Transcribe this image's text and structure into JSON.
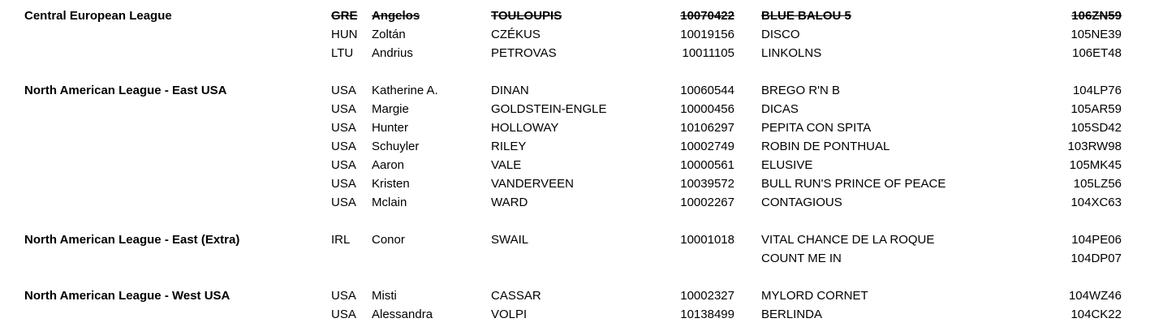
{
  "colors": {
    "text": "#000000",
    "background": "#ffffff"
  },
  "document": {
    "groups": [
      {
        "league": "Central European League",
        "rows": [
          {
            "country": "GRE",
            "first_name": "Angelos",
            "last_name": "TOULOUPIS",
            "fei_id": "10070422",
            "horse": "BLUE BALOU 5",
            "horse_id": "106ZN59",
            "struck": true
          },
          {
            "country": "HUN",
            "first_name": "Zoltán",
            "last_name": "CZÉKUS",
            "fei_id": "10019156",
            "horse": "DISCO",
            "horse_id": "105NE39",
            "struck": false
          },
          {
            "country": "LTU",
            "first_name": "Andrius",
            "last_name": "PETROVAS",
            "fei_id": "10011105",
            "horse": "LINKOLNS",
            "horse_id": "106ET48",
            "struck": false
          }
        ]
      },
      {
        "league": "North American League - East USA",
        "rows": [
          {
            "country": "USA",
            "first_name": "Katherine A.",
            "last_name": "DINAN",
            "fei_id": "10060544",
            "horse": "BREGO R'N B",
            "horse_id": "104LP76",
            "struck": false
          },
          {
            "country": "USA",
            "first_name": "Margie",
            "last_name": "GOLDSTEIN-ENGLE",
            "fei_id": "10000456",
            "horse": "DICAS",
            "horse_id": "105AR59",
            "struck": false
          },
          {
            "country": "USA",
            "first_name": "Hunter",
            "last_name": "HOLLOWAY",
            "fei_id": "10106297",
            "horse": "PEPITA CON SPITA",
            "horse_id": "105SD42",
            "struck": false
          },
          {
            "country": "USA",
            "first_name": "Schuyler",
            "last_name": "RILEY",
            "fei_id": "10002749",
            "horse": "ROBIN DE PONTHUAL",
            "horse_id": "103RW98",
            "struck": false
          },
          {
            "country": "USA",
            "first_name": "Aaron",
            "last_name": "VALE",
            "fei_id": "10000561",
            "horse": "ELUSIVE",
            "horse_id": "105MK45",
            "struck": false
          },
          {
            "country": "USA",
            "first_name": "Kristen",
            "last_name": "VANDERVEEN",
            "fei_id": "10039572",
            "horse": "BULL RUN'S PRINCE OF PEACE",
            "horse_id": "105LZ56",
            "struck": false
          },
          {
            "country": "USA",
            "first_name": "Mclain",
            "last_name": "WARD",
            "fei_id": "10002267",
            "horse": "CONTAGIOUS",
            "horse_id": "104XC63",
            "struck": false
          }
        ]
      },
      {
        "league": "North American League - East (Extra)",
        "rows": [
          {
            "country": "IRL",
            "first_name": "Conor",
            "last_name": "SWAIL",
            "fei_id": "10001018",
            "horse": "VITAL CHANCE DE LA ROQUE",
            "horse_id": "104PE06",
            "struck": false
          },
          {
            "country": "",
            "first_name": "",
            "last_name": "",
            "fei_id": "",
            "horse": "COUNT ME IN",
            "horse_id": "104DP07",
            "struck": false
          }
        ]
      },
      {
        "league": "North American League - West USA",
        "rows": [
          {
            "country": "USA",
            "first_name": "Misti",
            "last_name": "CASSAR",
            "fei_id": "10002327",
            "horse": "MYLORD CORNET",
            "horse_id": "104WZ46",
            "struck": false
          },
          {
            "country": "USA",
            "first_name": "Alessandra",
            "last_name": "VOLPI",
            "fei_id": "10138499",
            "horse": "BERLINDA",
            "horse_id": "104CK22",
            "struck": false
          }
        ]
      }
    ]
  }
}
